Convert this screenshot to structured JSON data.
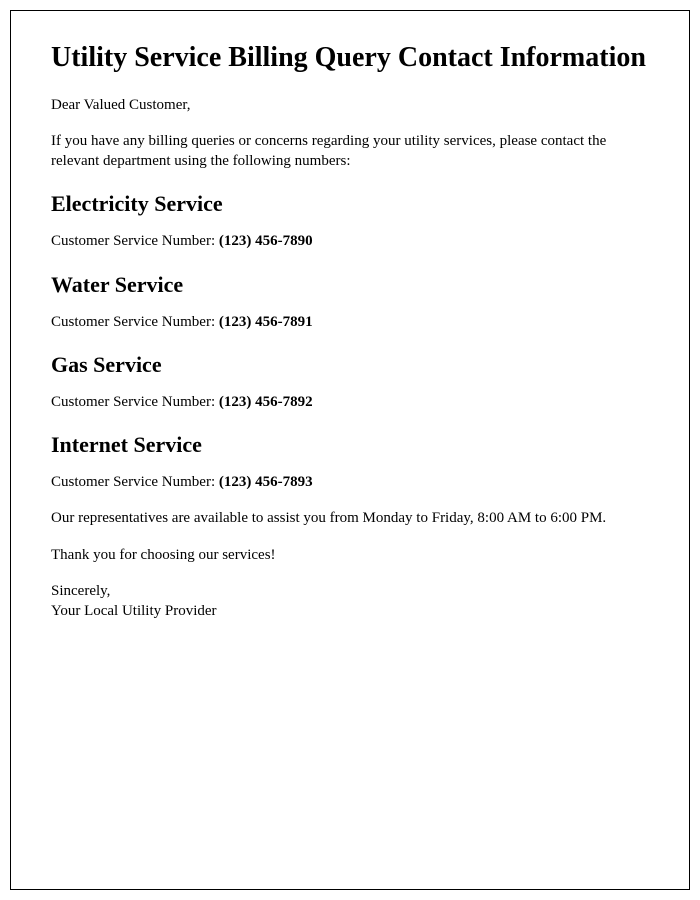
{
  "title": "Utility Service Billing Query Contact Information",
  "greeting": "Dear Valued Customer,",
  "intro": "If you have any billing queries or concerns regarding your utility services, please contact the relevant department using the following numbers:",
  "services": [
    {
      "heading": "Electricity Service",
      "label": "Customer Service Number: ",
      "number": "(123) 456-7890"
    },
    {
      "heading": "Water Service",
      "label": "Customer Service Number: ",
      "number": "(123) 456-7891"
    },
    {
      "heading": "Gas Service",
      "label": "Customer Service Number: ",
      "number": "(123) 456-7892"
    },
    {
      "heading": "Internet Service",
      "label": "Customer Service Number: ",
      "number": "(123) 456-7893"
    }
  ],
  "hours": "Our representatives are available to assist you from Monday to Friday, 8:00 AM to 6:00 PM.",
  "thanks": "Thank you for choosing our services!",
  "signoff1": "Sincerely,",
  "signoff2": "Your Local Utility Provider"
}
